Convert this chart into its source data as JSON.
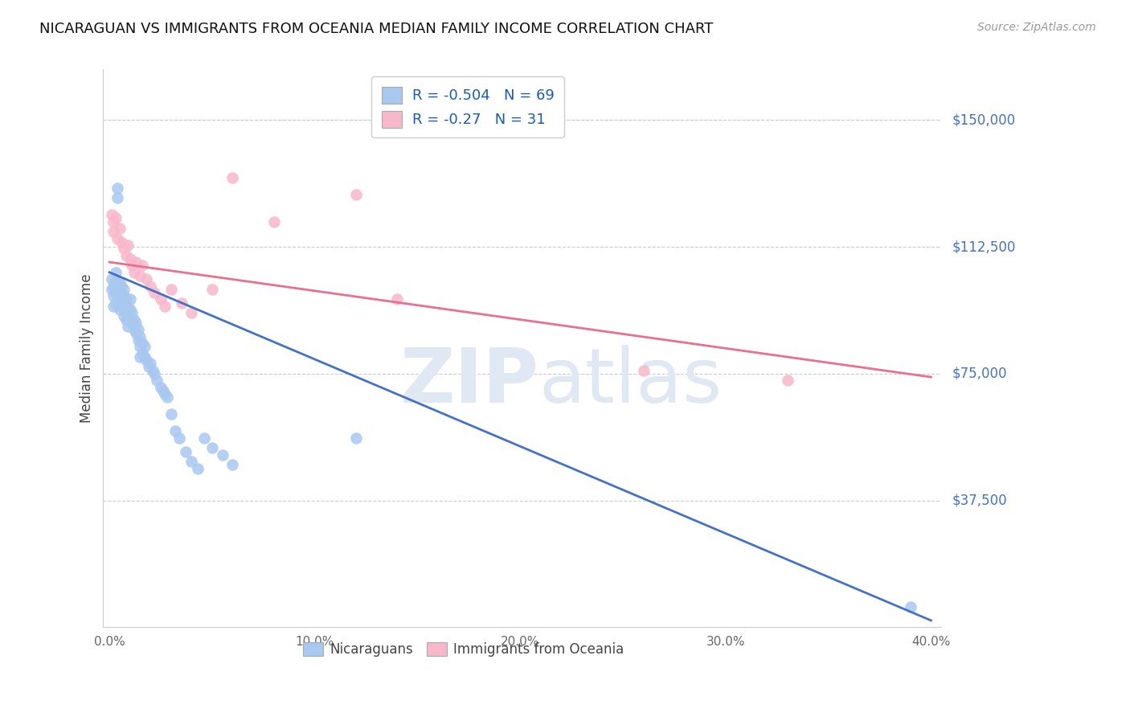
{
  "title": "NICARAGUAN VS IMMIGRANTS FROM OCEANIA MEDIAN FAMILY INCOME CORRELATION CHART",
  "source": "Source: ZipAtlas.com",
  "ylabel": "Median Family Income",
  "xlabel_ticks": [
    "0.0%",
    "10.0%",
    "20.0%",
    "30.0%",
    "40.0%"
  ],
  "xlabel_vals": [
    0.0,
    0.1,
    0.2,
    0.3,
    0.4
  ],
  "ytick_labels": [
    "$37,500",
    "$75,000",
    "$112,500",
    "$150,000"
  ],
  "ytick_vals": [
    37500,
    75000,
    112500,
    150000
  ],
  "ylim": [
    0,
    165000
  ],
  "xlim": [
    -0.003,
    0.405
  ],
  "blue_color": "#a8c8f0",
  "pink_color": "#f8b8cc",
  "blue_line_color": "#4472c4",
  "pink_line_color": "#e87090",
  "R_blue": -0.504,
  "N_blue": 69,
  "R_pink": -0.27,
  "N_pink": 31,
  "legend_label_blue": "Nicaraguans",
  "legend_label_pink": "Immigrants from Oceania",
  "watermark_zip": "ZIP",
  "watermark_atlas": "atlas",
  "blue_x": [
    0.001,
    0.001,
    0.002,
    0.002,
    0.002,
    0.003,
    0.003,
    0.003,
    0.003,
    0.004,
    0.004,
    0.004,
    0.005,
    0.005,
    0.005,
    0.005,
    0.006,
    0.006,
    0.006,
    0.007,
    0.007,
    0.007,
    0.007,
    0.008,
    0.008,
    0.008,
    0.009,
    0.009,
    0.009,
    0.01,
    0.01,
    0.01,
    0.011,
    0.011,
    0.012,
    0.012,
    0.013,
    0.013,
    0.014,
    0.014,
    0.015,
    0.015,
    0.015,
    0.016,
    0.016,
    0.017,
    0.017,
    0.018,
    0.019,
    0.02,
    0.021,
    0.022,
    0.023,
    0.025,
    0.026,
    0.027,
    0.028,
    0.03,
    0.032,
    0.034,
    0.037,
    0.04,
    0.043,
    0.046,
    0.05,
    0.055,
    0.06,
    0.12,
    0.39
  ],
  "blue_y": [
    103000,
    100000,
    101000,
    98000,
    95000,
    105000,
    102000,
    99000,
    96000,
    130000,
    127000,
    98000,
    102000,
    99000,
    97000,
    94000,
    101000,
    98000,
    95000,
    100000,
    98000,
    95000,
    92000,
    97000,
    94000,
    91000,
    95000,
    92000,
    89000,
    97000,
    94000,
    91000,
    93000,
    90000,
    91000,
    88000,
    90000,
    87000,
    88000,
    85000,
    86000,
    83000,
    80000,
    84000,
    81000,
    83000,
    80000,
    79000,
    77000,
    78000,
    76000,
    75000,
    73000,
    71000,
    70000,
    69000,
    68000,
    63000,
    58000,
    56000,
    52000,
    49000,
    47000,
    56000,
    53000,
    51000,
    48000,
    56000,
    6000
  ],
  "pink_x": [
    0.001,
    0.002,
    0.002,
    0.003,
    0.004,
    0.005,
    0.006,
    0.007,
    0.008,
    0.009,
    0.01,
    0.011,
    0.012,
    0.013,
    0.015,
    0.016,
    0.018,
    0.02,
    0.022,
    0.025,
    0.027,
    0.03,
    0.035,
    0.04,
    0.05,
    0.06,
    0.08,
    0.12,
    0.14,
    0.26,
    0.33
  ],
  "pink_y": [
    122000,
    120000,
    117000,
    121000,
    115000,
    118000,
    114000,
    112000,
    110000,
    113000,
    109000,
    107000,
    105000,
    108000,
    104000,
    107000,
    103000,
    101000,
    99000,
    97000,
    95000,
    100000,
    96000,
    93000,
    100000,
    133000,
    120000,
    128000,
    97000,
    76000,
    73000
  ],
  "blue_trendline_x": [
    0.0,
    0.4
  ],
  "blue_trendline_y": [
    105000,
    2000
  ],
  "pink_trendline_x": [
    0.0,
    0.4
  ],
  "pink_trendline_y": [
    108000,
    74000
  ],
  "grid_color": "#cccccc",
  "spine_color": "#cccccc",
  "tick_color": "#666666"
}
